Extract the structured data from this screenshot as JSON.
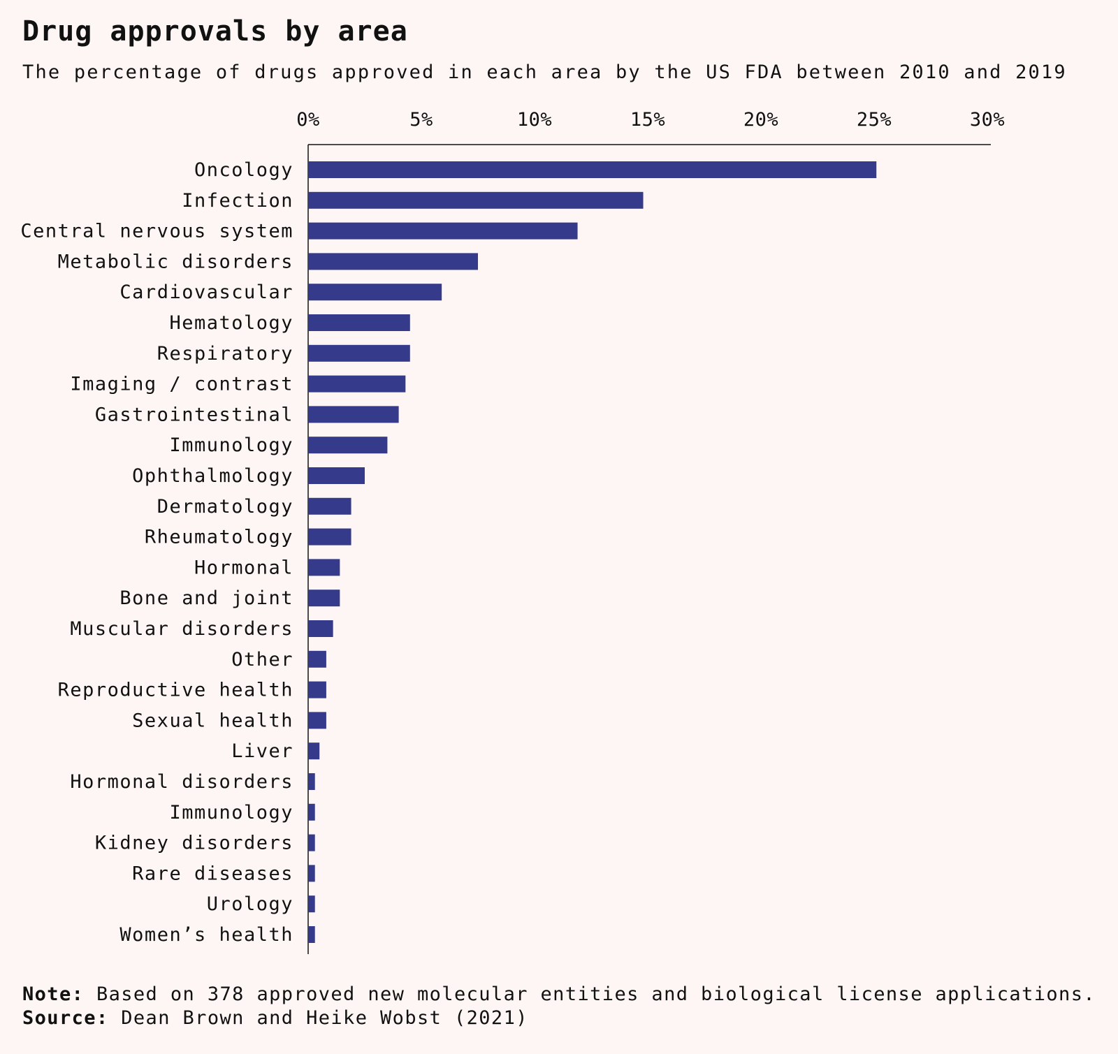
{
  "header": {
    "title": "Drug approvals by area",
    "subtitle": "The percentage of drugs approved in each area by the US FDA between 2010 and 2019"
  },
  "footer": {
    "note_label": "Note:",
    "note_text": "Based on 378 approved new molecular entities and biological license applications.",
    "source_label": "Source:",
    "source_text": "Dean Brown and Heike Wobst (2021)"
  },
  "colors": {
    "bar": "#353a8a",
    "background": "#fdf6f4",
    "axis": "#111111"
  },
  "chart_data": {
    "type": "bar",
    "orientation": "horizontal",
    "title": "Drug approvals by area",
    "subtitle": "The percentage of drugs approved in each area by the US FDA between 2010 and 2019",
    "xlim": [
      0,
      30
    ],
    "x_ticks": [
      0,
      5,
      10,
      15,
      20,
      25,
      30
    ],
    "x_tick_labels": [
      "0%",
      "5%",
      "10%",
      "15%",
      "20%",
      "25%",
      "30%"
    ],
    "x_axis_position": "top",
    "grid": false,
    "legend": "none",
    "categories": [
      "Oncology",
      "Infection",
      "Central nervous system",
      "Metabolic disorders",
      "Cardiovascular",
      "Hematology",
      "Respiratory",
      "Imaging / contrast",
      "Gastrointestinal",
      "Immunology",
      "Ophthalmology",
      "Dermatology",
      "Rheumatology",
      "Hormonal",
      "Bone and joint",
      "Muscular disorders",
      "Other",
      "Reproductive health",
      "Sexual health",
      "Liver",
      "Hormonal disorders",
      "Immunology",
      "Kidney disorders",
      "Rare diseases",
      "Urology",
      "Women’s health"
    ],
    "values": [
      25.1,
      14.8,
      11.9,
      7.5,
      5.9,
      4.5,
      4.5,
      4.3,
      4.0,
      3.5,
      2.5,
      1.9,
      1.9,
      1.4,
      1.4,
      1.1,
      0.8,
      0.8,
      0.8,
      0.5,
      0.3,
      0.3,
      0.3,
      0.3,
      0.3,
      0.3
    ]
  }
}
